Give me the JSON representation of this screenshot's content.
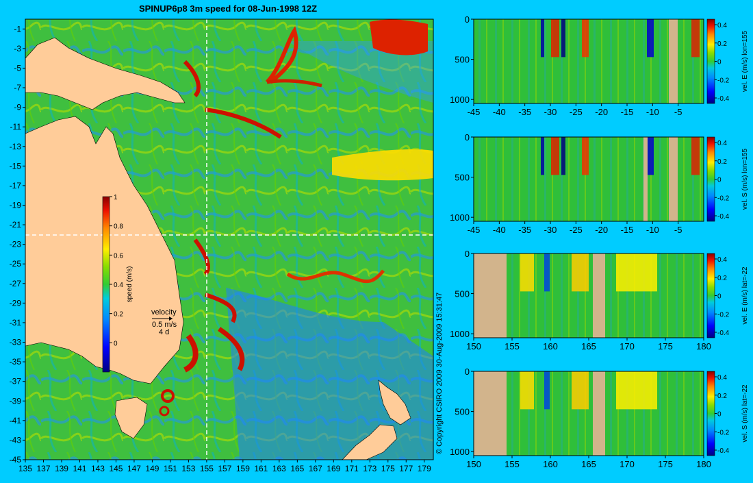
{
  "page": {
    "title": "SPINUP6p8 3m speed for 08-Jun-1998 12Z",
    "copyright": "© Copyright CSIRO 2009   30-Aug-2009 15:31:47",
    "background": "#00ccff"
  },
  "chart_data": [
    {
      "type": "heatmap",
      "name": "map",
      "title": "SPINUP6p8 3m speed for 08-Jun-1998 12Z",
      "x_ticks": [
        "135",
        "137",
        "139",
        "141",
        "143",
        "145",
        "147",
        "149",
        "151",
        "153",
        "155",
        "157",
        "159",
        "161",
        "163",
        "165",
        "167",
        "169",
        "171",
        "173",
        "175",
        "177",
        "179"
      ],
      "y_ticks": [
        "-1",
        "-3",
        "-5",
        "-7",
        "-9",
        "-11",
        "-13",
        "-15",
        "-17",
        "-19",
        "-21",
        "-23",
        "-25",
        "-27",
        "-29",
        "-31",
        "-33",
        "-35",
        "-37",
        "-39",
        "-41",
        "-43",
        "-45"
      ],
      "xlim": [
        135,
        180
      ],
      "ylim": [
        -45,
        0
      ],
      "section_lines": {
        "lon": 155,
        "lat": -22
      },
      "colorbar": {
        "label": "speed (m/s)",
        "ticks": [
          "1",
          "0.8",
          "0.6",
          "0.4",
          "0.2",
          "0"
        ],
        "range": [
          -0.2,
          1
        ]
      },
      "legend": {
        "label": "velocity",
        "scale": "0.5 m/s",
        "duration": "4 d"
      },
      "land_color": "#ffcc99"
    },
    {
      "type": "heatmap",
      "name": "section-1",
      "colorbar_label": "vel. E (m/s) lon=155",
      "x_ticks": [
        "-45",
        "-40",
        "-35",
        "-30",
        "-25",
        "-20",
        "-15",
        "-10",
        "-5"
      ],
      "y_ticks": [
        "0",
        "500",
        "1000"
      ],
      "cbar_ticks": [
        "0.4",
        "0.2",
        "0",
        "-0.2",
        "-0.4"
      ],
      "xlim": [
        -45,
        0
      ],
      "ylim": [
        0,
        1050
      ]
    },
    {
      "type": "heatmap",
      "name": "section-2",
      "colorbar_label": "vel. S (m/s) lon=155",
      "x_ticks": [
        "-45",
        "-40",
        "-35",
        "-30",
        "-25",
        "-20",
        "-15",
        "-10",
        "-5"
      ],
      "y_ticks": [
        "0",
        "500",
        "1000"
      ],
      "cbar_ticks": [
        "0.4",
        "0.2",
        "0",
        "-0.2",
        "-0.4"
      ],
      "xlim": [
        -45,
        0
      ],
      "ylim": [
        0,
        1050
      ]
    },
    {
      "type": "heatmap",
      "name": "section-3",
      "colorbar_label": "vel. E (m/s) lat=-22",
      "x_ticks": [
        "150",
        "155",
        "160",
        "165",
        "170",
        "175",
        "180"
      ],
      "y_ticks": [
        "0",
        "500",
        "1000"
      ],
      "cbar_ticks": [
        "0.4",
        "0.2",
        "0",
        "-0.2",
        "-0.4"
      ],
      "xlim": [
        150,
        180
      ],
      "ylim": [
        0,
        1050
      ]
    },
    {
      "type": "heatmap",
      "name": "section-4",
      "colorbar_label": "vel. S (m/s) lat=-22",
      "x_ticks": [
        "150",
        "155",
        "160",
        "165",
        "170",
        "175",
        "180"
      ],
      "y_ticks": [
        "0",
        "500",
        "1000"
      ],
      "cbar_ticks": [
        "0.4",
        "0.2",
        "0",
        "-0.2",
        "-0.4"
      ],
      "xlim": [
        150,
        180
      ],
      "ylim": [
        0,
        1050
      ]
    }
  ]
}
